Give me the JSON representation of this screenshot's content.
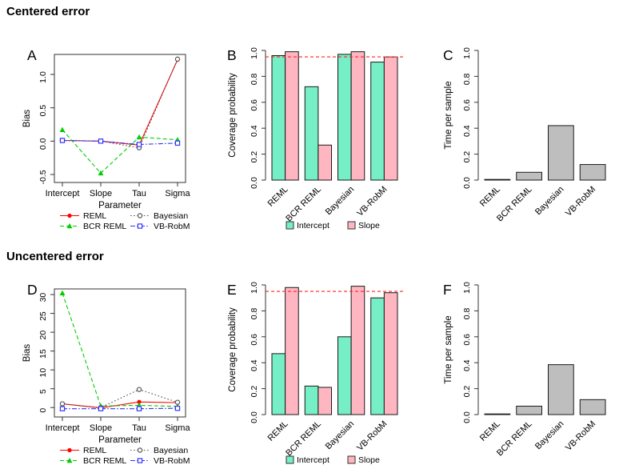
{
  "sections": [
    {
      "heading": "Centered error"
    },
    {
      "heading": "Uncentered error"
    }
  ],
  "colors": {
    "reml_red": "#ff0000",
    "bcr_green": "#00cd00",
    "bayesian_gray": "#555555",
    "vbrobm_blue": "#3333ff",
    "intercept_teal": "#76eec6",
    "slope_pink": "#ffb6c1",
    "time_bar_gray": "#bebebe",
    "refline_red": "#ff2222",
    "axis_black": "#333333"
  },
  "chart_data": [
    {
      "panel": "A",
      "section": "Centered error",
      "type": "line",
      "xlabel": "Parameter",
      "ylabel": "Bias",
      "categories": [
        "Intercept",
        "Slope",
        "Tau",
        "Sigma"
      ],
      "ylim": [
        -0.62,
        1.3
      ],
      "yticks": [
        -0.5,
        0.0,
        0.5,
        1.0
      ],
      "ytick_labels": [
        "-0.5",
        "0.0",
        "0.5",
        "1.0"
      ],
      "grid": false,
      "legend_position": "below",
      "series": [
        {
          "name": "REML",
          "color": "#ff0000",
          "marker": "filled-circle",
          "line_style": "solid",
          "values": [
            0.01,
            0.0,
            -0.06,
            1.22
          ]
        },
        {
          "name": "BCR REML",
          "color": "#00cd00",
          "marker": "filled-triangle",
          "line_style": "dashed",
          "values": [
            0.17,
            -0.48,
            0.06,
            0.02
          ]
        },
        {
          "name": "Bayesian",
          "color": "#555555",
          "marker": "open-circle",
          "line_style": "dotted",
          "values": [
            0.01,
            0.0,
            -0.1,
            1.23
          ]
        },
        {
          "name": "VB-RobM",
          "color": "#3333ff",
          "marker": "open-square",
          "line_style": "dashdot",
          "values": [
            0.01,
            0.0,
            -0.05,
            -0.03
          ]
        }
      ]
    },
    {
      "panel": "B",
      "section": "Centered error",
      "type": "bar",
      "bar_mode": "grouped",
      "ylabel": "Coverage probability",
      "categories": [
        "REML",
        "BCR REML",
        "Bayesian",
        "VB-RobM"
      ],
      "ylim": [
        0,
        1
      ],
      "yticks": [
        0.0,
        0.2,
        0.4,
        0.6,
        0.8,
        1.0
      ],
      "ytick_labels": [
        "0.0",
        "0.2",
        "0.4",
        "0.6",
        "0.8",
        "1.0"
      ],
      "refline": {
        "value": 0.95,
        "color": "#ff2222",
        "style": "dashed"
      },
      "legend_position": "below",
      "series": [
        {
          "name": "Intercept",
          "color": "#76eec6",
          "values": [
            0.96,
            0.72,
            0.97,
            0.91
          ]
        },
        {
          "name": "Slope",
          "color": "#ffb6c1",
          "values": [
            0.99,
            0.27,
            0.99,
            0.95
          ]
        }
      ]
    },
    {
      "panel": "C",
      "section": "Centered error",
      "type": "bar",
      "bar_mode": "single",
      "ylabel": "Time per sample",
      "categories": [
        "REML",
        "BCR REML",
        "Bayesian",
        "VB-RobM"
      ],
      "ylim": [
        0,
        1
      ],
      "yticks": [
        0.0,
        0.2,
        0.4,
        0.6,
        0.8,
        1.0
      ],
      "ytick_labels": [
        "0.0",
        "0.2",
        "0.4",
        "0.6",
        "0.8",
        "1.0"
      ],
      "bar_color": "#bebebe",
      "values": [
        0.005,
        0.06,
        0.42,
        0.12
      ]
    },
    {
      "panel": "D",
      "section": "Uncentered error",
      "type": "line",
      "xlabel": "Parameter",
      "ylabel": "Bias",
      "categories": [
        "Intercept",
        "Slope",
        "Tau",
        "Sigma"
      ],
      "ylim": [
        -2.5,
        31.5
      ],
      "yticks": [
        0,
        5,
        10,
        15,
        20,
        25,
        30
      ],
      "ytick_labels": [
        "0",
        "5",
        "10",
        "15",
        "20",
        "25",
        "30"
      ],
      "grid": false,
      "legend_position": "below",
      "series": [
        {
          "name": "REML",
          "color": "#ff0000",
          "marker": "filled-circle",
          "line_style": "solid",
          "values": [
            1.0,
            -0.1,
            1.5,
            1.3
          ]
        },
        {
          "name": "BCR REML",
          "color": "#00cd00",
          "marker": "filled-triangle",
          "line_style": "dashed",
          "values": [
            30.4,
            0.4,
            0.6,
            0.3
          ]
        },
        {
          "name": "Bayesian",
          "color": "#555555",
          "marker": "open-circle",
          "line_style": "dotted",
          "values": [
            1.0,
            0.0,
            4.8,
            1.4
          ]
        },
        {
          "name": "VB-RobM",
          "color": "#3333ff",
          "marker": "open-square",
          "line_style": "dashdot",
          "values": [
            -0.3,
            -0.3,
            -0.3,
            -0.2
          ]
        }
      ]
    },
    {
      "panel": "E",
      "section": "Uncentered error",
      "type": "bar",
      "bar_mode": "grouped",
      "ylabel": "Coverage probability",
      "categories": [
        "REML",
        "BCR REML",
        "Bayesian",
        "VB-RobM"
      ],
      "ylim": [
        0,
        1
      ],
      "yticks": [
        0.0,
        0.2,
        0.4,
        0.6,
        0.8,
        1.0
      ],
      "ytick_labels": [
        "0.0",
        "0.2",
        "0.4",
        "0.6",
        "0.8",
        "1.0"
      ],
      "refline": {
        "value": 0.95,
        "color": "#ff2222",
        "style": "dashed"
      },
      "legend_position": "below",
      "series": [
        {
          "name": "Intercept",
          "color": "#76eec6",
          "values": [
            0.47,
            0.22,
            0.6,
            0.9
          ]
        },
        {
          "name": "Slope",
          "color": "#ffb6c1",
          "values": [
            0.98,
            0.21,
            0.99,
            0.94
          ]
        }
      ]
    },
    {
      "panel": "F",
      "section": "Uncentered error",
      "type": "bar",
      "bar_mode": "single",
      "ylabel": "Time per sample",
      "categories": [
        "REML",
        "BCR REML",
        "Bayesian",
        "VB-RobM"
      ],
      "ylim": [
        0,
        1
      ],
      "yticks": [
        0.0,
        0.2,
        0.4,
        0.6,
        0.8,
        1.0
      ],
      "ytick_labels": [
        "0.0",
        "0.2",
        "0.4",
        "0.6",
        "0.8",
        "1.0"
      ],
      "bar_color": "#bebebe",
      "values": [
        0.005,
        0.065,
        0.385,
        0.115
      ]
    }
  ]
}
